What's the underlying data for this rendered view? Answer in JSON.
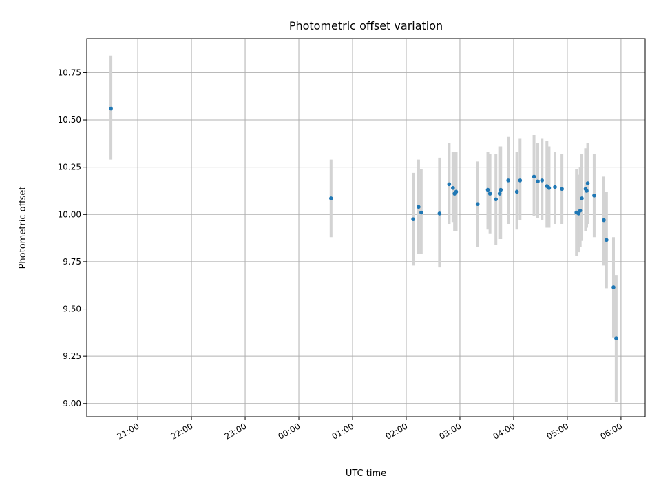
{
  "chart_data": {
    "type": "scatter",
    "title": "Photometric offset variation",
    "xlabel": "UTC time",
    "ylabel": "Photometric offset",
    "x_unit": "hours since 00:00 UTC",
    "xlim": [
      -3.95,
      6.45
    ],
    "ylim": [
      8.93,
      10.93
    ],
    "x_ticks": [
      {
        "value": -3,
        "label": "21:00"
      },
      {
        "value": -2,
        "label": "22:00"
      },
      {
        "value": -1,
        "label": "23:00"
      },
      {
        "value": 0,
        "label": "00:00"
      },
      {
        "value": 1,
        "label": "01:00"
      },
      {
        "value": 2,
        "label": "02:00"
      },
      {
        "value": 3,
        "label": "03:00"
      },
      {
        "value": 4,
        "label": "04:00"
      },
      {
        "value": 5,
        "label": "05:00"
      },
      {
        "value": 6,
        "label": "06:00"
      }
    ],
    "y_ticks": [
      {
        "value": 9.0,
        "label": "9.00"
      },
      {
        "value": 9.25,
        "label": "9.25"
      },
      {
        "value": 9.5,
        "label": "9.50"
      },
      {
        "value": 9.75,
        "label": "9.75"
      },
      {
        "value": 10.0,
        "label": "10.00"
      },
      {
        "value": 10.25,
        "label": "10.25"
      },
      {
        "value": 10.5,
        "label": "10.50"
      },
      {
        "value": 10.75,
        "label": "10.75"
      }
    ],
    "grid": true,
    "point_color": "#1f77b4",
    "errorbar_color": "#d3d3d3",
    "points": [
      {
        "x": -3.5,
        "y": 10.56,
        "lo": 10.29,
        "hi": 10.84
      },
      {
        "x": 0.6,
        "y": 10.085,
        "lo": 9.88,
        "hi": 10.29
      },
      {
        "x": 2.13,
        "y": 9.975,
        "lo": 9.73,
        "hi": 10.22
      },
      {
        "x": 2.23,
        "y": 10.04,
        "lo": 9.79,
        "hi": 10.29
      },
      {
        "x": 2.28,
        "y": 10.01,
        "lo": 9.79,
        "hi": 10.24
      },
      {
        "x": 2.62,
        "y": 10.005,
        "lo": 9.72,
        "hi": 10.3
      },
      {
        "x": 2.8,
        "y": 10.16,
        "lo": 9.95,
        "hi": 10.38
      },
      {
        "x": 2.87,
        "y": 10.14,
        "lo": 9.96,
        "hi": 10.33
      },
      {
        "x": 2.9,
        "y": 10.11,
        "lo": 9.91,
        "hi": 10.33
      },
      {
        "x": 2.93,
        "y": 10.12,
        "lo": 9.91,
        "hi": 10.33
      },
      {
        "x": 3.33,
        "y": 10.055,
        "lo": 9.83,
        "hi": 10.28
      },
      {
        "x": 3.52,
        "y": 10.13,
        "lo": 9.92,
        "hi": 10.33
      },
      {
        "x": 3.56,
        "y": 10.11,
        "lo": 9.9,
        "hi": 10.32
      },
      {
        "x": 3.67,
        "y": 10.08,
        "lo": 9.84,
        "hi": 10.32
      },
      {
        "x": 3.74,
        "y": 10.11,
        "lo": 9.87,
        "hi": 10.36
      },
      {
        "x": 3.76,
        "y": 10.13,
        "lo": 9.87,
        "hi": 10.36
      },
      {
        "x": 3.9,
        "y": 10.18,
        "lo": 9.95,
        "hi": 10.41
      },
      {
        "x": 4.06,
        "y": 10.12,
        "lo": 9.92,
        "hi": 10.33
      },
      {
        "x": 4.12,
        "y": 10.18,
        "lo": 9.97,
        "hi": 10.4
      },
      {
        "x": 4.38,
        "y": 10.2,
        "lo": 9.99,
        "hi": 10.42
      },
      {
        "x": 4.45,
        "y": 10.175,
        "lo": 9.98,
        "hi": 10.38
      },
      {
        "x": 4.53,
        "y": 10.18,
        "lo": 9.97,
        "hi": 10.4
      },
      {
        "x": 4.62,
        "y": 10.15,
        "lo": 9.93,
        "hi": 10.39
      },
      {
        "x": 4.66,
        "y": 10.14,
        "lo": 9.93,
        "hi": 10.36
      },
      {
        "x": 4.77,
        "y": 10.145,
        "lo": 9.95,
        "hi": 10.33
      },
      {
        "x": 4.9,
        "y": 10.135,
        "lo": 9.95,
        "hi": 10.32
      },
      {
        "x": 5.17,
        "y": 10.01,
        "lo": 9.78,
        "hi": 10.24
      },
      {
        "x": 5.21,
        "y": 10.005,
        "lo": 9.8,
        "hi": 10.21
      },
      {
        "x": 5.24,
        "y": 10.02,
        "lo": 9.83,
        "hi": 10.25
      },
      {
        "x": 5.27,
        "y": 10.085,
        "lo": 9.86,
        "hi": 10.32
      },
      {
        "x": 5.34,
        "y": 10.135,
        "lo": 9.91,
        "hi": 10.35
      },
      {
        "x": 5.36,
        "y": 10.125,
        "lo": 9.93,
        "hi": 10.33
      },
      {
        "x": 5.38,
        "y": 10.165,
        "lo": 9.95,
        "hi": 10.38
      },
      {
        "x": 5.5,
        "y": 10.1,
        "lo": 9.88,
        "hi": 10.32
      },
      {
        "x": 5.68,
        "y": 9.97,
        "lo": 9.73,
        "hi": 10.2
      },
      {
        "x": 5.73,
        "y": 9.865,
        "lo": 9.61,
        "hi": 10.12
      },
      {
        "x": 5.86,
        "y": 9.615,
        "lo": 9.35,
        "hi": 9.88
      },
      {
        "x": 5.91,
        "y": 9.345,
        "lo": 9.01,
        "hi": 9.68
      }
    ]
  }
}
